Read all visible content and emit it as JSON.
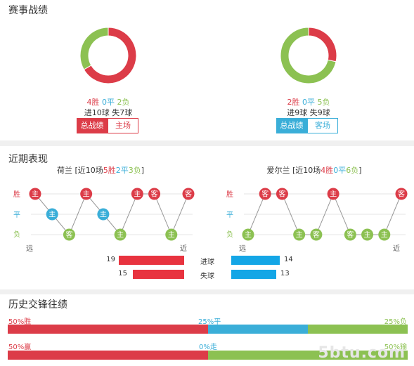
{
  "colors": {
    "win": "#dc3c48",
    "draw": "#3aaed8",
    "loss": "#8cc152",
    "bar_red": "#e8333f",
    "bar_blue": "#14a6e6",
    "hist_red": "#dc3c48"
  },
  "section1": {
    "title": "赛事战绩",
    "home": {
      "donut": {
        "win": 4,
        "draw": 0,
        "loss": 2
      },
      "win_text": "4胜",
      "draw_text": "0平",
      "loss_text": "2负",
      "goals_text": "进10球 失7球",
      "btn_active": "总战绩",
      "btn_inactive": "主场"
    },
    "away": {
      "donut": {
        "win": 2,
        "draw": 0,
        "loss": 5
      },
      "win_text": "2胜",
      "draw_text": "0平",
      "loss_text": "5负",
      "goals_text": "进9球 失9球",
      "btn_active": "总战绩",
      "btn_inactive": "客场"
    }
  },
  "section2": {
    "title": "近期表现",
    "axis": {
      "win": "胜",
      "draw": "平",
      "loss": "负"
    },
    "far_label": "远",
    "near_label": "近",
    "home": {
      "head_prefix": "荷兰 [近10场",
      "head_win": "5胜",
      "head_draw": "2平",
      "head_loss": "3负",
      "head_suffix": "]",
      "matches": [
        {
          "r": "W",
          "v": "主"
        },
        {
          "r": "D",
          "v": "主"
        },
        {
          "r": "L",
          "v": "客"
        },
        {
          "r": "W",
          "v": "主"
        },
        {
          "r": "D",
          "v": "主"
        },
        {
          "r": "L",
          "v": "主"
        },
        {
          "r": "W",
          "v": "主"
        },
        {
          "r": "W",
          "v": "客"
        },
        {
          "r": "L",
          "v": "主"
        },
        {
          "r": "W",
          "v": "客"
        }
      ]
    },
    "away": {
      "head_prefix": "爱尔兰 [近10场",
      "head_win": "4胜",
      "head_draw": "0平",
      "head_loss": "6负",
      "head_suffix": "]",
      "matches": [
        {
          "r": "L",
          "v": "主"
        },
        {
          "r": "W",
          "v": "客"
        },
        {
          "r": "W",
          "v": "客"
        },
        {
          "r": "L",
          "v": "主"
        },
        {
          "r": "L",
          "v": "客"
        },
        {
          "r": "W",
          "v": "主"
        },
        {
          "r": "L",
          "v": "客"
        },
        {
          "r": "L",
          "v": "主"
        },
        {
          "r": "L",
          "v": "主"
        },
        {
          "r": "W",
          "v": "客"
        }
      ]
    },
    "compare": {
      "goals_label": "进球",
      "conceded_label": "失球",
      "home_goals": 19,
      "away_goals": 14,
      "home_conceded": 15,
      "away_conceded": 13
    }
  },
  "section3": {
    "title": "历史交锋往绩",
    "row1": {
      "left": "50%胜",
      "mid": "25%平",
      "right": "25%负",
      "w": 50,
      "d": 25,
      "l": 25
    },
    "row2": {
      "left": "50%赢",
      "mid": "0%走",
      "right": "50%输",
      "w": 50,
      "d": 0,
      "l": 50
    }
  },
  "watermark": "5btu.com"
}
